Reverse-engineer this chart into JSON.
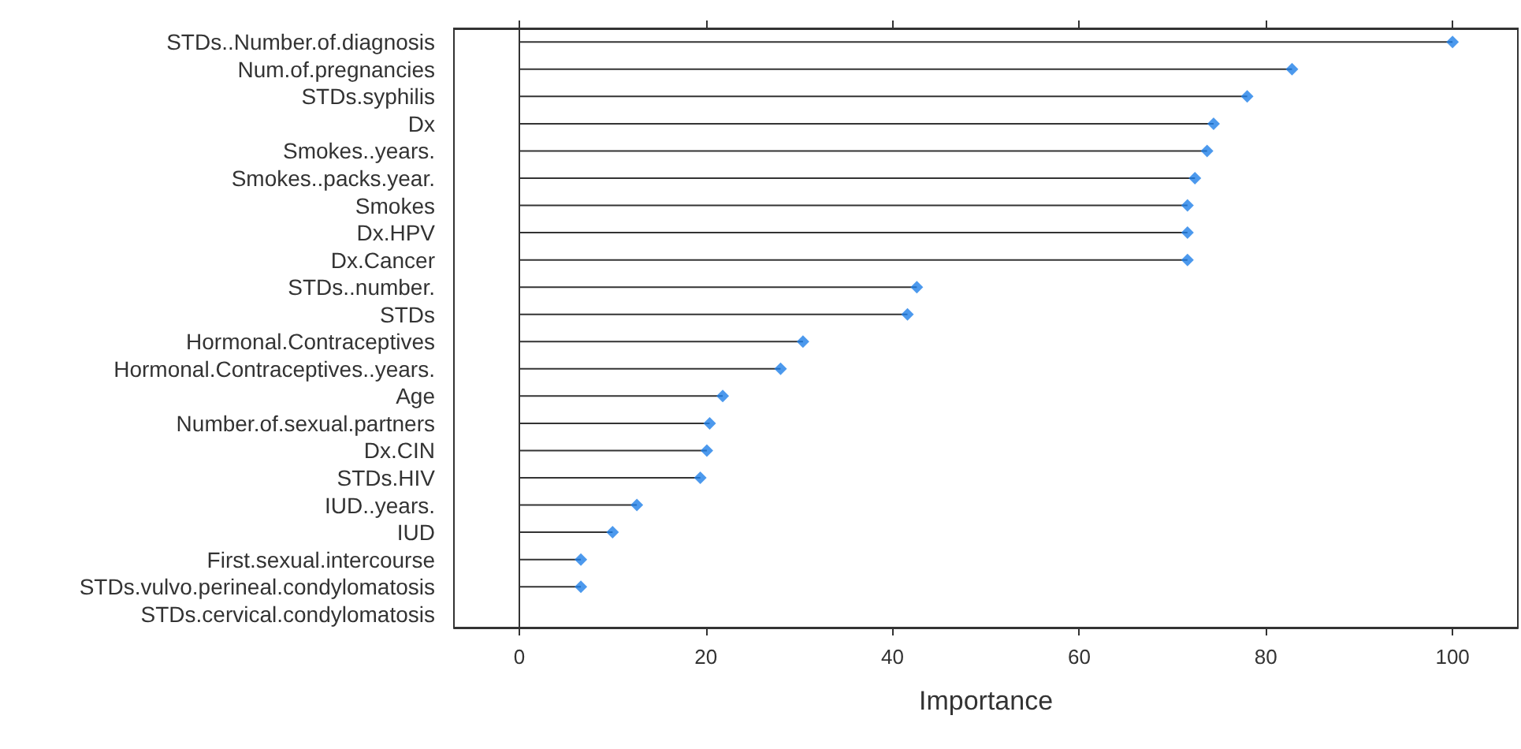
{
  "chart_data": {
    "type": "lollipop",
    "orientation": "horizontal",
    "xlabel": "Importance",
    "categories": [
      "STDs..Number.of.diagnosis",
      "Num.of.pregnancies",
      "STDs.syphilis",
      "Dx",
      "Smokes..years.",
      "Smokes..packs.year.",
      "Smokes",
      "Dx.HPV",
      "Dx.Cancer",
      "STDs..number.",
      "STDs",
      "Hormonal.Contraceptives",
      "Hormonal.Contraceptives..years.",
      "Age",
      "Number.of.sexual.partners",
      "Dx.CIN",
      "STDs.HIV",
      "IUD..years.",
      "IUD",
      "First.sexual.intercourse",
      "STDs.vulvo.perineal.condylomatosis",
      "STDs.cervical.condylomatosis"
    ],
    "values": [
      100,
      82.8,
      78.0,
      74.4,
      73.7,
      72.4,
      71.6,
      71.6,
      71.6,
      42.6,
      41.6,
      30.4,
      28.0,
      21.8,
      20.4,
      20.1,
      19.4,
      12.6,
      10.0,
      6.6,
      6.6,
      null
    ],
    "color": "#1f7fe8",
    "marker": "diamond",
    "xlim": [
      -7,
      107
    ],
    "xticks": [
      0,
      20,
      40,
      60,
      80,
      100
    ],
    "ref_lines": [
      {
        "axis": "x",
        "value": 0,
        "color": "#333333"
      }
    ],
    "grid": false
  }
}
